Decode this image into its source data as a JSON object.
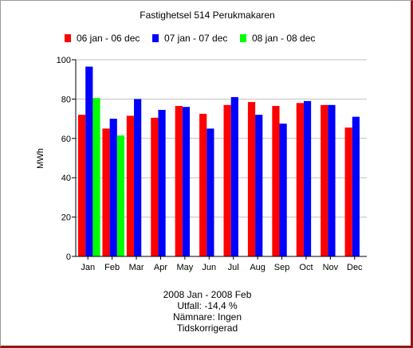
{
  "chart_data": {
    "type": "bar",
    "title": "Fastighetsel 514 Perukmakaren",
    "xlabel": "",
    "ylabel": "MWh",
    "ylim": [
      0,
      100
    ],
    "yticks": [
      0,
      20,
      40,
      60,
      80,
      100
    ],
    "grid": true,
    "legend_position": "top",
    "categories": [
      "Jan",
      "Feb",
      "Mar",
      "Apr",
      "May",
      "Jun",
      "Jul",
      "Aug",
      "Sep",
      "Oct",
      "Nov",
      "Dec"
    ],
    "series": [
      {
        "name": "06 jan - 06 dec",
        "color": "#ff0000",
        "values": [
          72,
          65,
          71.5,
          70.5,
          76.5,
          72.5,
          77,
          78.5,
          76.5,
          78,
          77,
          65.5
        ]
      },
      {
        "name": "07 jan - 07 dec",
        "color": "#0000ff",
        "values": [
          96.5,
          70,
          80,
          74.5,
          76,
          65,
          81,
          72,
          67.5,
          79,
          77,
          71
        ]
      },
      {
        "name": "08 jan - 08 dec",
        "color": "#00ff00",
        "values": [
          80.5,
          61.5,
          null,
          null,
          null,
          null,
          null,
          null,
          null,
          null,
          null,
          null
        ]
      }
    ]
  },
  "footer": {
    "period": "2008 Jan - 2008 Feb",
    "outcome": "Utfall: -14,4 %",
    "denominator": "Nämnare: Ingen",
    "correction": "Tidskorrigerad"
  }
}
